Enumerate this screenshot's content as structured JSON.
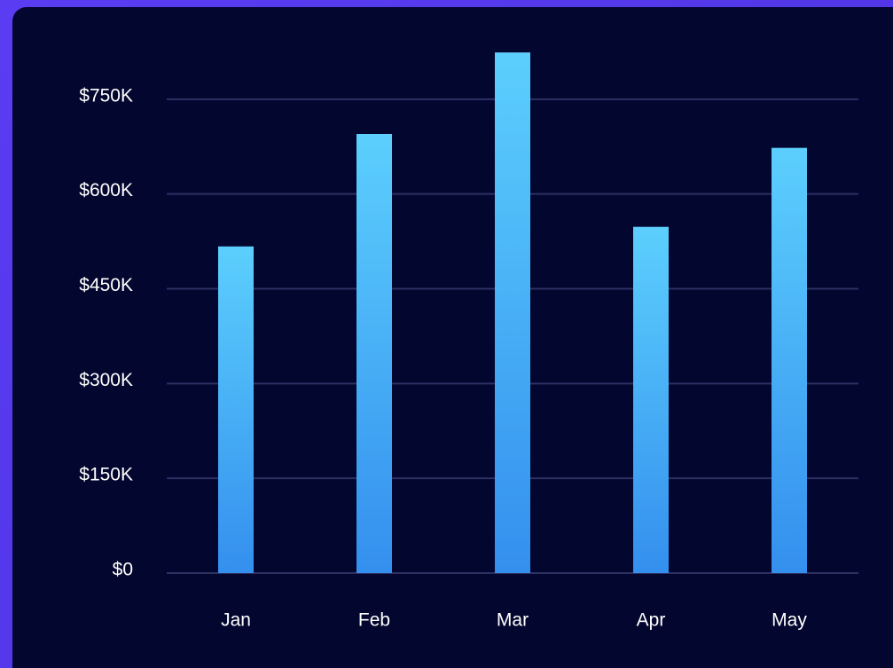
{
  "chart_data": {
    "type": "bar",
    "categories": [
      "Jan",
      "Feb",
      "Mar",
      "Apr",
      "May"
    ],
    "values": [
      517000,
      695000,
      824000,
      548000,
      673000
    ],
    "ylim": [
      0,
      900000
    ],
    "yticks": [
      {
        "value": 0,
        "label": "$0"
      },
      {
        "value": 150000,
        "label": "$150K"
      },
      {
        "value": 300000,
        "label": "$300K"
      },
      {
        "value": 450000,
        "label": "$450K"
      },
      {
        "value": 600000,
        "label": "$600K"
      },
      {
        "value": 750000,
        "label": "$750K"
      }
    ],
    "grid": true
  }
}
